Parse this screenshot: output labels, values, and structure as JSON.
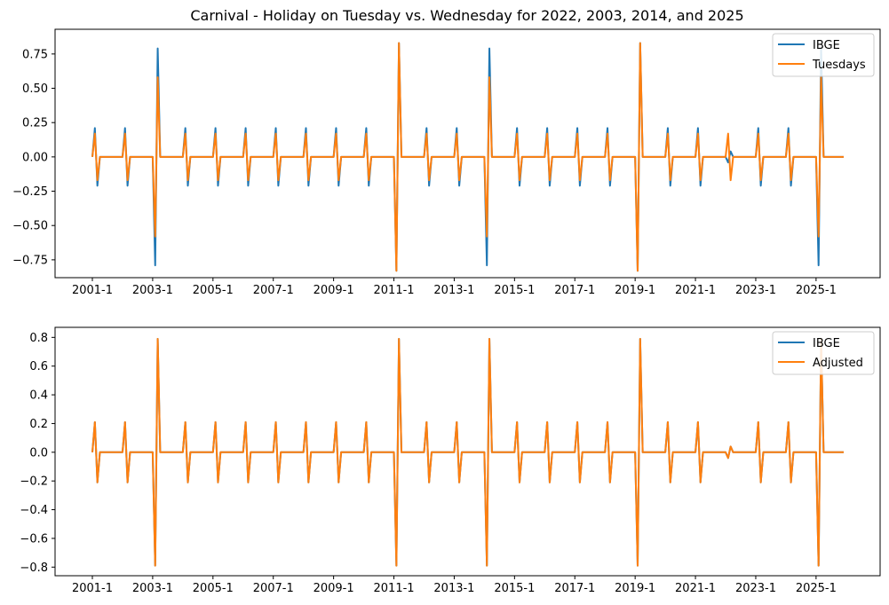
{
  "chart_data": [
    {
      "type": "line",
      "title": "Carnival - Holiday on Tuesday vs. Wednesday for 2022, 2003, 2014, and 2025",
      "xlabel": "",
      "ylabel": "",
      "x_ticks": [
        "2001-1",
        "2003-1",
        "2005-1",
        "2007-1",
        "2009-1",
        "2011-1",
        "2013-1",
        "2015-1",
        "2017-1",
        "2019-1",
        "2021-1",
        "2023-1",
        "2025-1"
      ],
      "x_range": [
        "2001-1",
        "2025-12"
      ],
      "y_ticks": [
        "0.75",
        "0.50",
        "0.25",
        "0.00",
        "−0.25",
        "−0.50",
        "−0.75"
      ],
      "ylim": [
        -0.88,
        0.93
      ],
      "grid": false,
      "legend_position": "top-right",
      "series": [
        {
          "name": "IBGE",
          "color": "#1f77b4",
          "nonzero_points": [
            {
              "x": "2001-2",
              "y": 0.21
            },
            {
              "x": "2001-3",
              "y": -0.21
            },
            {
              "x": "2002-2",
              "y": 0.21
            },
            {
              "x": "2002-3",
              "y": -0.21
            },
            {
              "x": "2003-2",
              "y": -0.79
            },
            {
              "x": "2003-3",
              "y": 0.79
            },
            {
              "x": "2004-2",
              "y": 0.21
            },
            {
              "x": "2004-3",
              "y": -0.21
            },
            {
              "x": "2005-2",
              "y": 0.21
            },
            {
              "x": "2005-3",
              "y": -0.21
            },
            {
              "x": "2006-2",
              "y": 0.21
            },
            {
              "x": "2006-3",
              "y": -0.21
            },
            {
              "x": "2007-2",
              "y": 0.21
            },
            {
              "x": "2007-3",
              "y": -0.21
            },
            {
              "x": "2008-2",
              "y": 0.21
            },
            {
              "x": "2008-3",
              "y": -0.21
            },
            {
              "x": "2009-2",
              "y": 0.21
            },
            {
              "x": "2009-3",
              "y": -0.21
            },
            {
              "x": "2010-2",
              "y": 0.21
            },
            {
              "x": "2010-3",
              "y": -0.21
            },
            {
              "x": "2011-2",
              "y": -0.83
            },
            {
              "x": "2011-3",
              "y": 0.83
            },
            {
              "x": "2012-2",
              "y": 0.21
            },
            {
              "x": "2012-3",
              "y": -0.21
            },
            {
              "x": "2013-2",
              "y": 0.21
            },
            {
              "x": "2013-3",
              "y": -0.21
            },
            {
              "x": "2014-2",
              "y": -0.79
            },
            {
              "x": "2014-3",
              "y": 0.79
            },
            {
              "x": "2015-2",
              "y": 0.21
            },
            {
              "x": "2015-3",
              "y": -0.21
            },
            {
              "x": "2016-2",
              "y": 0.21
            },
            {
              "x": "2016-3",
              "y": -0.21
            },
            {
              "x": "2017-2",
              "y": 0.21
            },
            {
              "x": "2017-3",
              "y": -0.21
            },
            {
              "x": "2018-2",
              "y": 0.21
            },
            {
              "x": "2018-3",
              "y": -0.21
            },
            {
              "x": "2019-2",
              "y": -0.83
            },
            {
              "x": "2019-3",
              "y": 0.83
            },
            {
              "x": "2020-2",
              "y": 0.21
            },
            {
              "x": "2020-3",
              "y": -0.21
            },
            {
              "x": "2021-2",
              "y": 0.21
            },
            {
              "x": "2021-3",
              "y": -0.21
            },
            {
              "x": "2022-2",
              "y": -0.04
            },
            {
              "x": "2022-3",
              "y": 0.04
            },
            {
              "x": "2023-2",
              "y": 0.21
            },
            {
              "x": "2023-3",
              "y": -0.21
            },
            {
              "x": "2024-2",
              "y": 0.21
            },
            {
              "x": "2024-3",
              "y": -0.21
            },
            {
              "x": "2025-2",
              "y": -0.79
            },
            {
              "x": "2025-3",
              "y": 0.79
            }
          ]
        },
        {
          "name": "Tuesdays",
          "color": "#ff7f0e",
          "nonzero_points": [
            {
              "x": "2001-2",
              "y": 0.17
            },
            {
              "x": "2001-3",
              "y": -0.17
            },
            {
              "x": "2002-2",
              "y": 0.17
            },
            {
              "x": "2002-3",
              "y": -0.17
            },
            {
              "x": "2003-2",
              "y": -0.58
            },
            {
              "x": "2003-3",
              "y": 0.58
            },
            {
              "x": "2004-2",
              "y": 0.17
            },
            {
              "x": "2004-3",
              "y": -0.17
            },
            {
              "x": "2005-2",
              "y": 0.17
            },
            {
              "x": "2005-3",
              "y": -0.17
            },
            {
              "x": "2006-2",
              "y": 0.17
            },
            {
              "x": "2006-3",
              "y": -0.17
            },
            {
              "x": "2007-2",
              "y": 0.17
            },
            {
              "x": "2007-3",
              "y": -0.17
            },
            {
              "x": "2008-2",
              "y": 0.17
            },
            {
              "x": "2008-3",
              "y": -0.17
            },
            {
              "x": "2009-2",
              "y": 0.17
            },
            {
              "x": "2009-3",
              "y": -0.17
            },
            {
              "x": "2010-2",
              "y": 0.17
            },
            {
              "x": "2010-3",
              "y": -0.17
            },
            {
              "x": "2011-2",
              "y": -0.83
            },
            {
              "x": "2011-3",
              "y": 0.83
            },
            {
              "x": "2012-2",
              "y": 0.17
            },
            {
              "x": "2012-3",
              "y": -0.17
            },
            {
              "x": "2013-2",
              "y": 0.17
            },
            {
              "x": "2013-3",
              "y": -0.17
            },
            {
              "x": "2014-2",
              "y": -0.58
            },
            {
              "x": "2014-3",
              "y": 0.58
            },
            {
              "x": "2015-2",
              "y": 0.17
            },
            {
              "x": "2015-3",
              "y": -0.17
            },
            {
              "x": "2016-2",
              "y": 0.17
            },
            {
              "x": "2016-3",
              "y": -0.17
            },
            {
              "x": "2017-2",
              "y": 0.17
            },
            {
              "x": "2017-3",
              "y": -0.17
            },
            {
              "x": "2018-2",
              "y": 0.17
            },
            {
              "x": "2018-3",
              "y": -0.17
            },
            {
              "x": "2019-2",
              "y": -0.83
            },
            {
              "x": "2019-3",
              "y": 0.83
            },
            {
              "x": "2020-2",
              "y": 0.17
            },
            {
              "x": "2020-3",
              "y": -0.17
            },
            {
              "x": "2021-2",
              "y": 0.17
            },
            {
              "x": "2021-3",
              "y": -0.17
            },
            {
              "x": "2022-2",
              "y": 0.17
            },
            {
              "x": "2022-3",
              "y": -0.17
            },
            {
              "x": "2023-2",
              "y": 0.17
            },
            {
              "x": "2023-3",
              "y": -0.17
            },
            {
              "x": "2024-2",
              "y": 0.17
            },
            {
              "x": "2024-3",
              "y": -0.17
            },
            {
              "x": "2025-2",
              "y": -0.58
            },
            {
              "x": "2025-3",
              "y": 0.58
            }
          ]
        }
      ]
    },
    {
      "type": "line",
      "title": "",
      "xlabel": "",
      "ylabel": "",
      "x_ticks": [
        "2001-1",
        "2003-1",
        "2005-1",
        "2007-1",
        "2009-1",
        "2011-1",
        "2013-1",
        "2015-1",
        "2017-1",
        "2019-1",
        "2021-1",
        "2023-1",
        "2025-1"
      ],
      "x_range": [
        "2001-1",
        "2025-12"
      ],
      "y_ticks": [
        "0.8",
        "0.6",
        "0.4",
        "0.2",
        "0.0",
        "−0.2",
        "−0.4",
        "−0.6",
        "−0.8"
      ],
      "ylim": [
        -0.86,
        0.87
      ],
      "grid": false,
      "legend_position": "top-right",
      "series": [
        {
          "name": "IBGE",
          "color": "#1f77b4",
          "nonzero_points": [
            {
              "x": "2001-2",
              "y": 0.21
            },
            {
              "x": "2001-3",
              "y": -0.21
            },
            {
              "x": "2002-2",
              "y": 0.21
            },
            {
              "x": "2002-3",
              "y": -0.21
            },
            {
              "x": "2003-2",
              "y": -0.79
            },
            {
              "x": "2003-3",
              "y": 0.79
            },
            {
              "x": "2004-2",
              "y": 0.21
            },
            {
              "x": "2004-3",
              "y": -0.21
            },
            {
              "x": "2005-2",
              "y": 0.21
            },
            {
              "x": "2005-3",
              "y": -0.21
            },
            {
              "x": "2006-2",
              "y": 0.21
            },
            {
              "x": "2006-3",
              "y": -0.21
            },
            {
              "x": "2007-2",
              "y": 0.21
            },
            {
              "x": "2007-3",
              "y": -0.21
            },
            {
              "x": "2008-2",
              "y": 0.21
            },
            {
              "x": "2008-3",
              "y": -0.21
            },
            {
              "x": "2009-2",
              "y": 0.21
            },
            {
              "x": "2009-3",
              "y": -0.21
            },
            {
              "x": "2010-2",
              "y": 0.21
            },
            {
              "x": "2010-3",
              "y": -0.21
            },
            {
              "x": "2011-2",
              "y": -0.79
            },
            {
              "x": "2011-3",
              "y": 0.79
            },
            {
              "x": "2012-2",
              "y": 0.21
            },
            {
              "x": "2012-3",
              "y": -0.21
            },
            {
              "x": "2013-2",
              "y": 0.21
            },
            {
              "x": "2013-3",
              "y": -0.21
            },
            {
              "x": "2014-2",
              "y": -0.79
            },
            {
              "x": "2014-3",
              "y": 0.79
            },
            {
              "x": "2015-2",
              "y": 0.21
            },
            {
              "x": "2015-3",
              "y": -0.21
            },
            {
              "x": "2016-2",
              "y": 0.21
            },
            {
              "x": "2016-3",
              "y": -0.21
            },
            {
              "x": "2017-2",
              "y": 0.21
            },
            {
              "x": "2017-3",
              "y": -0.21
            },
            {
              "x": "2018-2",
              "y": 0.21
            },
            {
              "x": "2018-3",
              "y": -0.21
            },
            {
              "x": "2019-2",
              "y": -0.79
            },
            {
              "x": "2019-3",
              "y": 0.79
            },
            {
              "x": "2020-2",
              "y": 0.21
            },
            {
              "x": "2020-3",
              "y": -0.21
            },
            {
              "x": "2021-2",
              "y": 0.21
            },
            {
              "x": "2021-3",
              "y": -0.21
            },
            {
              "x": "2022-2",
              "y": -0.04
            },
            {
              "x": "2022-3",
              "y": 0.04
            },
            {
              "x": "2023-2",
              "y": 0.21
            },
            {
              "x": "2023-3",
              "y": -0.21
            },
            {
              "x": "2024-2",
              "y": 0.21
            },
            {
              "x": "2024-3",
              "y": -0.21
            },
            {
              "x": "2025-2",
              "y": -0.79
            },
            {
              "x": "2025-3",
              "y": 0.79
            }
          ]
        },
        {
          "name": "Adjusted",
          "color": "#ff7f0e",
          "nonzero_points": [
            {
              "x": "2001-2",
              "y": 0.21
            },
            {
              "x": "2001-3",
              "y": -0.21
            },
            {
              "x": "2002-2",
              "y": 0.21
            },
            {
              "x": "2002-3",
              "y": -0.21
            },
            {
              "x": "2003-2",
              "y": -0.79
            },
            {
              "x": "2003-3",
              "y": 0.79
            },
            {
              "x": "2004-2",
              "y": 0.21
            },
            {
              "x": "2004-3",
              "y": -0.21
            },
            {
              "x": "2005-2",
              "y": 0.21
            },
            {
              "x": "2005-3",
              "y": -0.21
            },
            {
              "x": "2006-2",
              "y": 0.21
            },
            {
              "x": "2006-3",
              "y": -0.21
            },
            {
              "x": "2007-2",
              "y": 0.21
            },
            {
              "x": "2007-3",
              "y": -0.21
            },
            {
              "x": "2008-2",
              "y": 0.21
            },
            {
              "x": "2008-3",
              "y": -0.21
            },
            {
              "x": "2009-2",
              "y": 0.21
            },
            {
              "x": "2009-3",
              "y": -0.21
            },
            {
              "x": "2010-2",
              "y": 0.21
            },
            {
              "x": "2010-3",
              "y": -0.21
            },
            {
              "x": "2011-2",
              "y": -0.79
            },
            {
              "x": "2011-3",
              "y": 0.79
            },
            {
              "x": "2012-2",
              "y": 0.21
            },
            {
              "x": "2012-3",
              "y": -0.21
            },
            {
              "x": "2013-2",
              "y": 0.21
            },
            {
              "x": "2013-3",
              "y": -0.21
            },
            {
              "x": "2014-2",
              "y": -0.79
            },
            {
              "x": "2014-3",
              "y": 0.79
            },
            {
              "x": "2015-2",
              "y": 0.21
            },
            {
              "x": "2015-3",
              "y": -0.21
            },
            {
              "x": "2016-2",
              "y": 0.21
            },
            {
              "x": "2016-3",
              "y": -0.21
            },
            {
              "x": "2017-2",
              "y": 0.21
            },
            {
              "x": "2017-3",
              "y": -0.21
            },
            {
              "x": "2018-2",
              "y": 0.21
            },
            {
              "x": "2018-3",
              "y": -0.21
            },
            {
              "x": "2019-2",
              "y": -0.79
            },
            {
              "x": "2019-3",
              "y": 0.79
            },
            {
              "x": "2020-2",
              "y": 0.21
            },
            {
              "x": "2020-3",
              "y": -0.21
            },
            {
              "x": "2021-2",
              "y": 0.21
            },
            {
              "x": "2021-3",
              "y": -0.21
            },
            {
              "x": "2022-2",
              "y": -0.04
            },
            {
              "x": "2022-3",
              "y": 0.04
            },
            {
              "x": "2023-2",
              "y": 0.21
            },
            {
              "x": "2023-3",
              "y": -0.21
            },
            {
              "x": "2024-2",
              "y": 0.21
            },
            {
              "x": "2024-3",
              "y": -0.21
            },
            {
              "x": "2025-2",
              "y": -0.79
            },
            {
              "x": "2025-3",
              "y": 0.79
            }
          ]
        }
      ]
    }
  ]
}
